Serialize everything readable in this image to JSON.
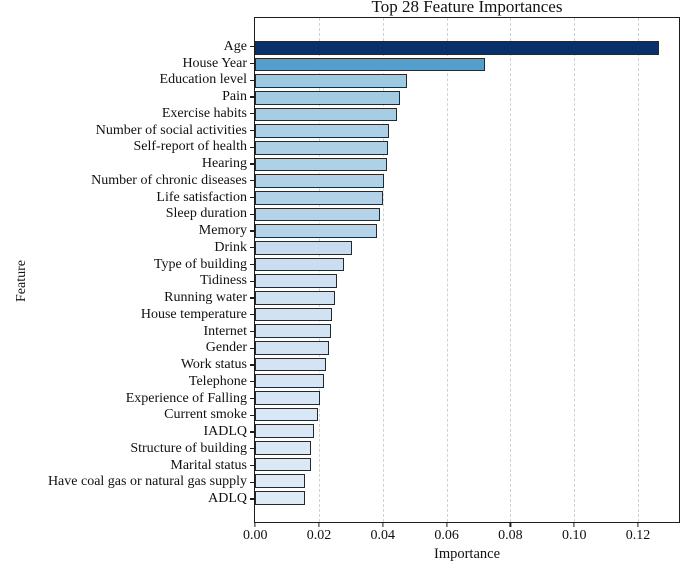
{
  "page": {
    "background_color": "#ffffff",
    "text_color": "#111111"
  },
  "chart_data": {
    "type": "bar",
    "orientation": "horizontal",
    "title": "Top 28 Feature Importances",
    "xlabel": "Importance",
    "ylabel": "Feature",
    "xlim": [
      0,
      0.1328
    ],
    "grid": "vertical-dashed",
    "gridline_color": "#cdd2d9",
    "bar_edge_color": "#24292e",
    "colormap": "Blues",
    "categories": [
      "Age",
      "House Year",
      "Education level",
      "Pain",
      "Exercise habits",
      "Number of social activities",
      "Self-report of health",
      "Hearing",
      "Number of chronic diseases",
      "Life satisfaction",
      "Sleep duration",
      "Memory",
      "Drink",
      "Type of building",
      "Tidiness",
      "Running water",
      "House temperature",
      "Internet",
      "Gender",
      "Work status",
      "Telephone",
      "Experience of Falling",
      "Current smoke",
      "IADLQ",
      "Structure of building",
      "Marital status",
      "Have coal gas or natural gas supply",
      "ADLQ"
    ],
    "values": [
      0.1265,
      0.072,
      0.0475,
      0.0453,
      0.0444,
      0.0419,
      0.0415,
      0.0413,
      0.0404,
      0.04,
      0.0392,
      0.0383,
      0.0303,
      0.0278,
      0.0257,
      0.0249,
      0.024,
      0.0238,
      0.0233,
      0.0221,
      0.0215,
      0.0205,
      0.0197,
      0.0184,
      0.0176,
      0.0174,
      0.0158,
      0.0156
    ],
    "bar_colors": [
      "#08306b",
      "#549ecd",
      "#9ecae1",
      "#a3cce3",
      "#a5cde4",
      "#acd0e6",
      "#add0e6",
      "#add1e6",
      "#b0d2e7",
      "#b1d2e8",
      "#b3d3e8",
      "#b5d4e9",
      "#c8dcf0",
      "#cbdef1",
      "#cfe1f2",
      "#d0e1f2",
      "#d1e2f3",
      "#d2e3f3",
      "#d3e3f3",
      "#d4e4f4",
      "#d5e5f4",
      "#d7e6f5",
      "#d8e7f5",
      "#dae8f6",
      "#dbe9f6",
      "#dbe9f6",
      "#deebf7",
      "#deebf7"
    ],
    "x_ticks": [
      {
        "value": 0.0,
        "label": "0.00"
      },
      {
        "value": 0.02,
        "label": "0.02"
      },
      {
        "value": 0.04,
        "label": "0.04"
      },
      {
        "value": 0.06,
        "label": "0.06"
      },
      {
        "value": 0.08,
        "label": "0.08"
      },
      {
        "value": 0.1,
        "label": "0.10"
      },
      {
        "value": 0.12,
        "label": "0.12"
      }
    ]
  }
}
